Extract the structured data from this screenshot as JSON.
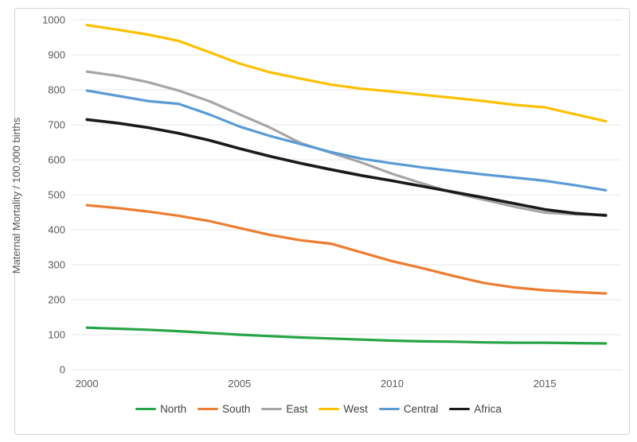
{
  "chart_data": {
    "type": "line",
    "title": "",
    "xlabel": "",
    "ylabel": "Maternal Mortality / 100,000 births",
    "ylim": [
      0,
      1000
    ],
    "y_ticks": [
      0,
      100,
      200,
      300,
      400,
      500,
      600,
      700,
      800,
      900,
      1000
    ],
    "x": [
      2000,
      2001,
      2002,
      2003,
      2004,
      2005,
      2006,
      2007,
      2008,
      2009,
      2010,
      2011,
      2012,
      2013,
      2014,
      2015,
      2016,
      2017
    ],
    "x_ticks": [
      2000,
      2005,
      2010,
      2015
    ],
    "grid": "horizontal",
    "legend_position": "bottom",
    "series": [
      {
        "name": "North",
        "color": "#27A546",
        "width": 3.2,
        "values": [
          120,
          117,
          114,
          110,
          105,
          100,
          96,
          92,
          89,
          86,
          83,
          81,
          80,
          78,
          77,
          77,
          76,
          75
        ]
      },
      {
        "name": "South",
        "color": "#ED7D31",
        "width": 3.2,
        "values": [
          470,
          462,
          452,
          440,
          425,
          405,
          385,
          370,
          360,
          335,
          310,
          290,
          268,
          248,
          235,
          227,
          222,
          218
        ]
      },
      {
        "name": "East",
        "color": "#A6A6A6",
        "width": 3.2,
        "values": [
          852,
          840,
          822,
          798,
          768,
          730,
          692,
          648,
          620,
          592,
          560,
          532,
          506,
          486,
          466,
          449,
          444,
          443
        ]
      },
      {
        "name": "West",
        "color": "#FFC000",
        "width": 3.2,
        "values": [
          985,
          972,
          958,
          940,
          908,
          875,
          850,
          832,
          815,
          803,
          795,
          786,
          777,
          768,
          757,
          750,
          730,
          710
        ]
      },
      {
        "name": "Central",
        "color": "#5B9BD5",
        "width": 3.2,
        "values": [
          798,
          783,
          768,
          760,
          730,
          695,
          668,
          645,
          622,
          603,
          590,
          578,
          568,
          558,
          549,
          540,
          527,
          513
        ]
      },
      {
        "name": "Africa",
        "color": "#1A1A1A",
        "width": 3.6,
        "values": [
          715,
          705,
          692,
          676,
          656,
          632,
          610,
          590,
          572,
          555,
          540,
          524,
          508,
          492,
          475,
          458,
          447,
          441
        ]
      }
    ]
  },
  "colors": {
    "background": "#FFFFFF",
    "frame_border": "#D6D6D6",
    "gridline": "#E7E7E7",
    "axis_text": "#595959",
    "legend_text": "#404040"
  }
}
